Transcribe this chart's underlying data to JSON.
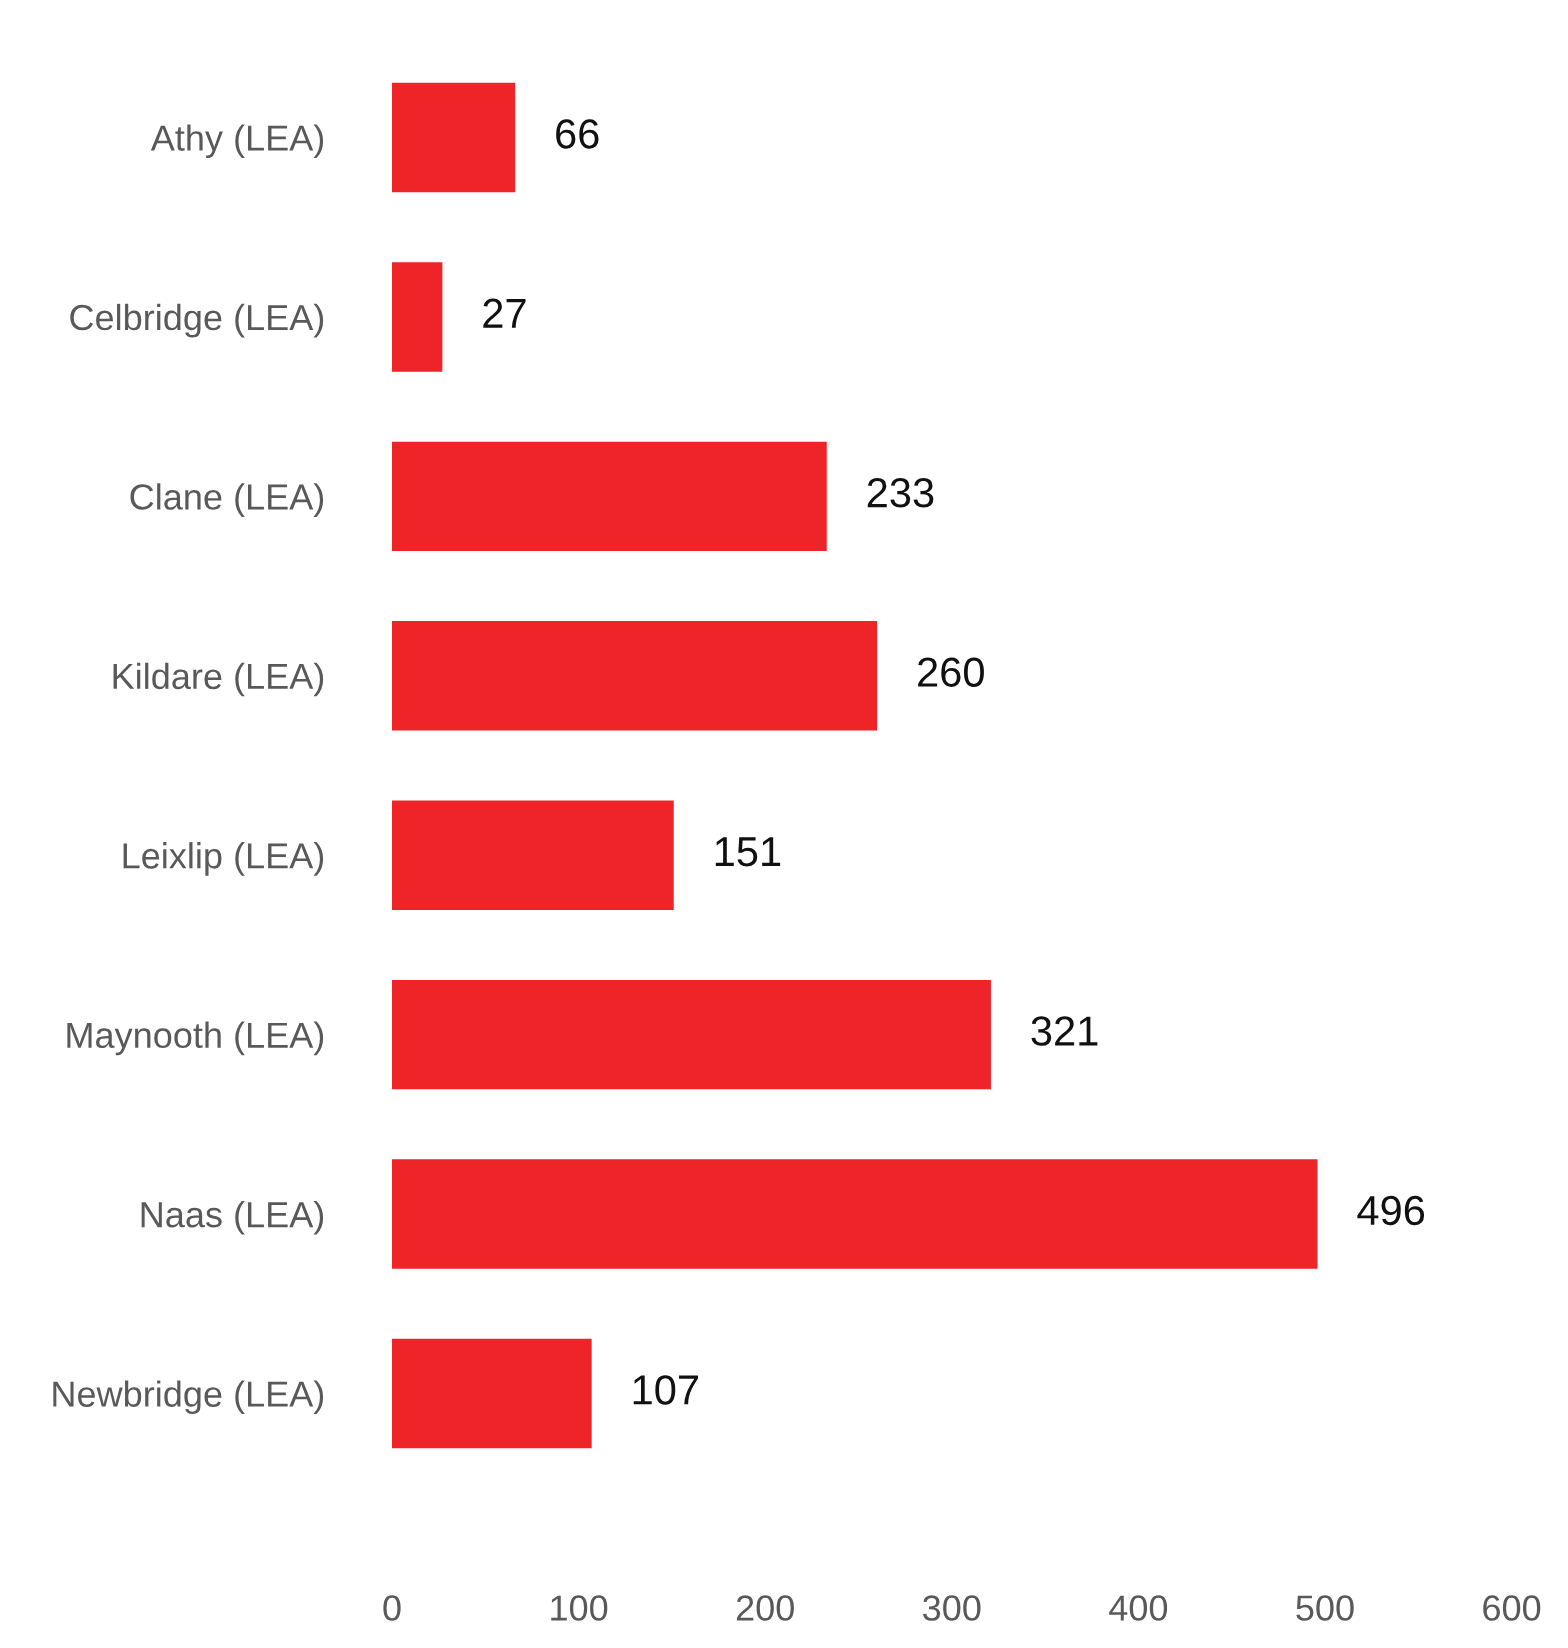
{
  "chart_data": {
    "type": "bar",
    "orientation": "horizontal",
    "categories": [
      "Athy (LEA)",
      "Celbridge (LEA)",
      "Clane (LEA)",
      "Kildare (LEA)",
      "Leixlip (LEA)",
      "Maynooth (LEA)",
      "Naas (LEA)",
      "Newbridge (LEA)"
    ],
    "values": [
      66,
      27,
      233,
      260,
      151,
      321,
      496,
      107
    ],
    "color": "#ee2429",
    "xlim": [
      0,
      600
    ],
    "xticks": [
      0,
      100,
      200,
      300,
      400,
      500,
      600
    ],
    "data_labels": true,
    "grid": false,
    "legend": false
  }
}
